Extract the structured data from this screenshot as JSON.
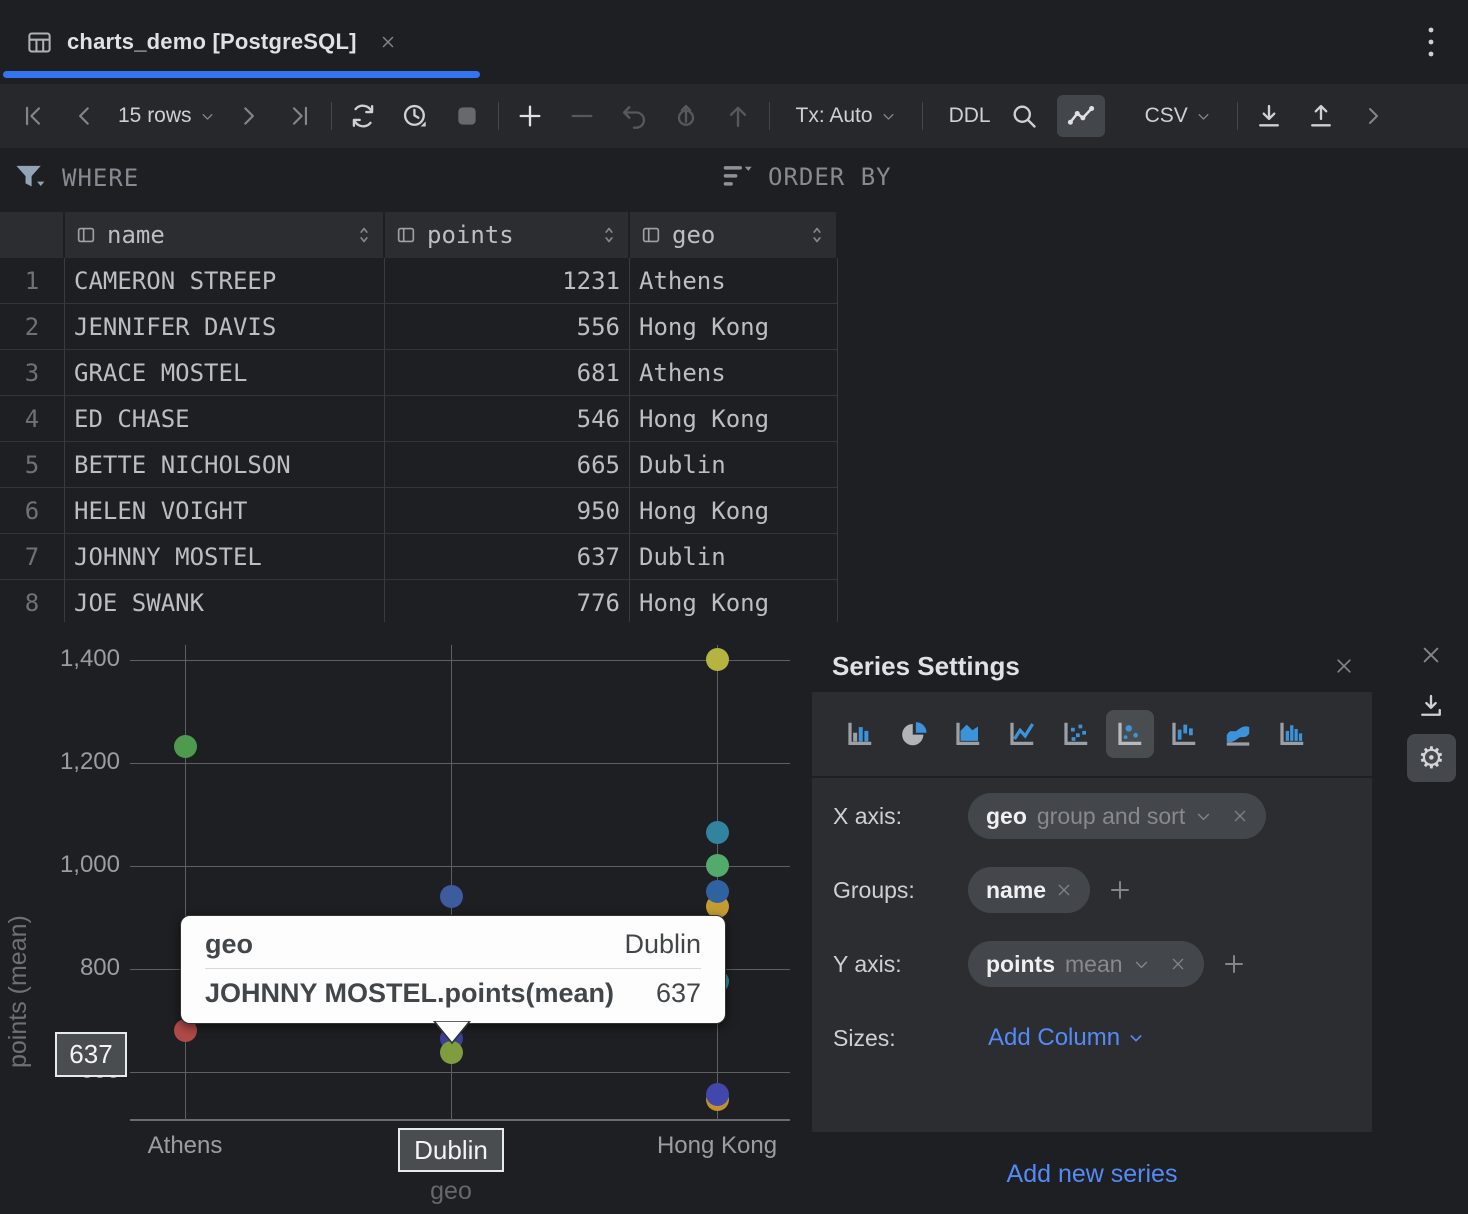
{
  "tab_bar": {
    "tab_title": "charts_demo [PostgreSQL]"
  },
  "toolbar": {
    "rows_label": "15 rows",
    "tx_label": "Tx: Auto",
    "ddl_label": "DDL",
    "csv_label": "CSV"
  },
  "filter_bar": {
    "where_label": "WHERE",
    "order_by_label": "ORDER BY"
  },
  "table": {
    "columns": [
      {
        "label": "name"
      },
      {
        "label": "points"
      },
      {
        "label": "geo"
      }
    ],
    "rows": [
      {
        "num": "1",
        "name": "CAMERON STREEP",
        "points": "1231",
        "geo": "Athens"
      },
      {
        "num": "2",
        "name": "JENNIFER DAVIS",
        "points": "556",
        "geo": "Hong Kong"
      },
      {
        "num": "3",
        "name": "GRACE MOSTEL",
        "points": "681",
        "geo": "Athens"
      },
      {
        "num": "4",
        "name": "ED CHASE",
        "points": "546",
        "geo": "Hong Kong"
      },
      {
        "num": "5",
        "name": "BETTE NICHOLSON",
        "points": "665",
        "geo": "Dublin"
      },
      {
        "num": "6",
        "name": "HELEN VOIGHT",
        "points": "950",
        "geo": "Hong Kong"
      },
      {
        "num": "7",
        "name": "JOHNNY MOSTEL",
        "points": "637",
        "geo": "Dublin"
      },
      {
        "num": "8",
        "name": "JOE SWANK",
        "points": "776",
        "geo": "Hong Kong"
      }
    ]
  },
  "chart_data": {
    "type": "scatter",
    "xlabel": "geo",
    "ylabel": "points (mean)",
    "categories": [
      "Athens",
      "Dublin",
      "Hong Kong"
    ],
    "y_ticks": [
      {
        "label": "600",
        "value": 600
      },
      {
        "label": "800",
        "value": 800
      },
      {
        "label": "1,000",
        "value": 1000
      },
      {
        "label": "1,200",
        "value": 1200
      },
      {
        "label": "1,400",
        "value": 1400
      }
    ],
    "ylim": [
      510,
      1430
    ],
    "grid": true,
    "legend": "none",
    "points": [
      {
        "category": "Athens",
        "value": 1231,
        "color": "#4e9b4e"
      },
      {
        "category": "Athens",
        "value": 681,
        "color": "#b04a48"
      },
      {
        "category": "Dublin",
        "value": 940,
        "color": "#3c5c9e"
      },
      {
        "category": "Dublin",
        "value": 665,
        "color": "#3c3f99"
      },
      {
        "category": "Dublin",
        "value": 637,
        "color": "#7f9d3e"
      },
      {
        "category": "Hong Kong",
        "value": 1400,
        "color": "#b5b440"
      },
      {
        "category": "Hong Kong",
        "value": 1065,
        "color": "#31839e"
      },
      {
        "category": "Hong Kong",
        "value": 1000,
        "color": "#52aa6b"
      },
      {
        "category": "Hong Kong",
        "value": 922,
        "color": "#c59b33"
      },
      {
        "category": "Hong Kong",
        "value": 950,
        "color": "#2f63a0"
      },
      {
        "category": "Hong Kong",
        "value": 776,
        "color": "#2c90a4"
      },
      {
        "category": "Hong Kong",
        "value": 546,
        "color": "#c2912f"
      },
      {
        "category": "Hong Kong",
        "value": 556,
        "color": "#4147ad"
      }
    ]
  },
  "tooltip": {
    "field_label": "geo",
    "field_value": "Dublin",
    "series_label": "JOHNNY MOSTEL.points(mean)",
    "series_value": "637"
  },
  "crosshair": {
    "y_label": "637",
    "x_label": "Dublin"
  },
  "series_settings": {
    "title": "Series Settings",
    "chart_types": [
      "bar",
      "pie",
      "area",
      "line",
      "scatter",
      "bubble",
      "bar-range",
      "area-range",
      "histogram"
    ],
    "selected_chart_type": "bubble",
    "x_axis_label": "X axis:",
    "x_axis_value": "geo",
    "x_axis_hint": "group and sort",
    "groups_label": "Groups:",
    "groups_value": "name",
    "y_axis_label": "Y axis:",
    "y_axis_value": "points",
    "y_axis_hint": "mean",
    "sizes_label": "Sizes:",
    "sizes_link": "Add Column",
    "add_series_link": "Add new series"
  },
  "icons": {
    "gear-icon": "⚙"
  },
  "colors": {
    "accent_blue": "#3574f0",
    "link_blue": "#548af7",
    "icon_blue": "#3d93d9"
  }
}
